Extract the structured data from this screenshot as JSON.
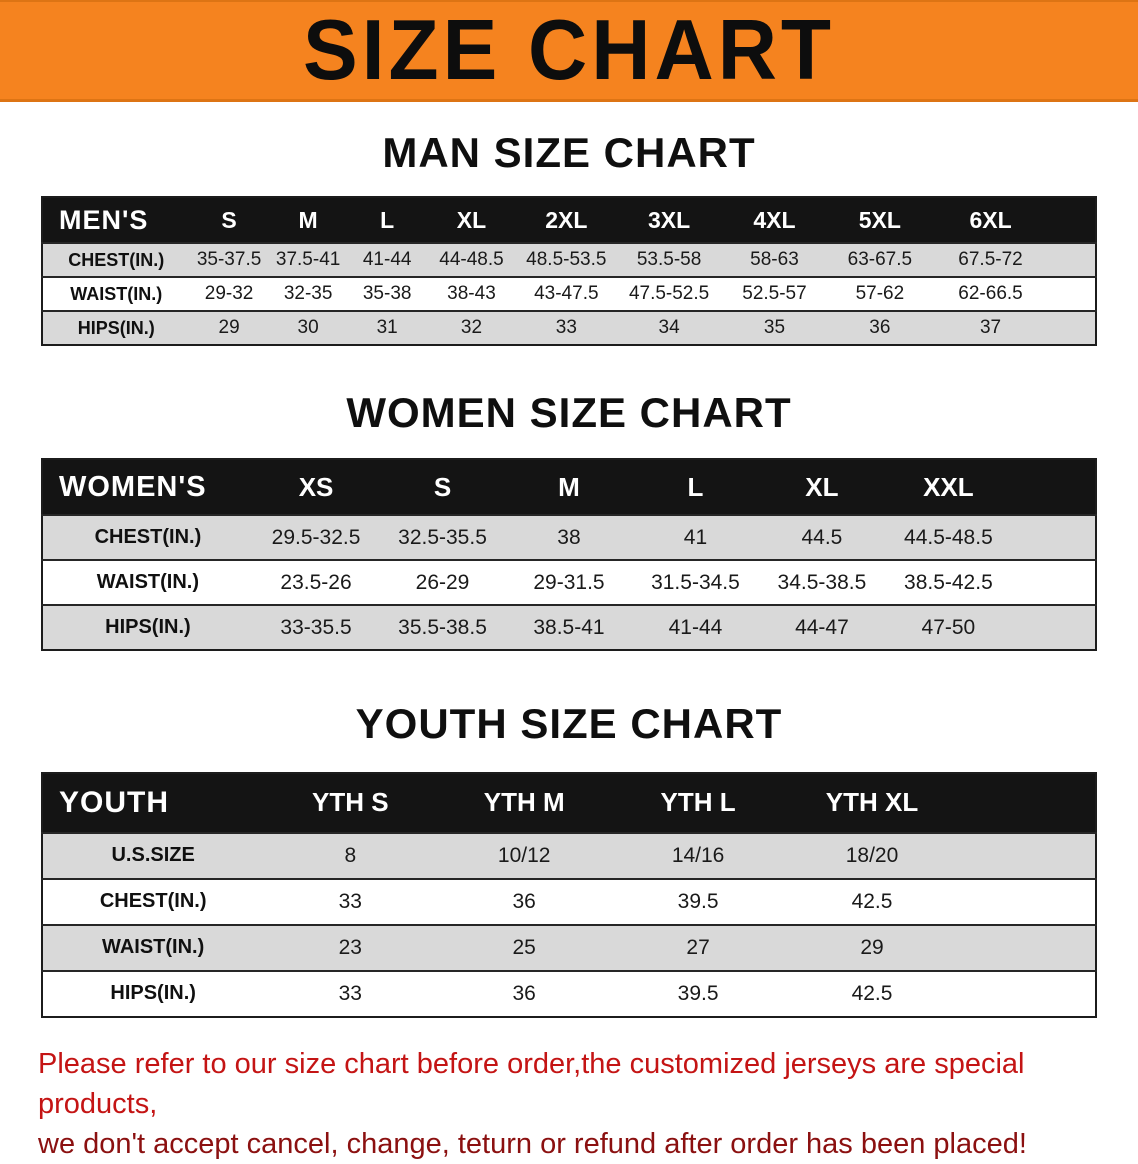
{
  "banner": {
    "title": "SIZE CHART"
  },
  "colors": {
    "banner_bg": "#F5831F",
    "header_bg": "#141414",
    "stripe": "#D9D9D9",
    "note_line1": "#C41414",
    "note_line2": "#8B1010"
  },
  "men": {
    "heading": "MAN SIZE CHART",
    "label": "MEN'S",
    "columns": [
      "S",
      "M",
      "L",
      "XL",
      "2XL",
      "3XL",
      "4XL",
      "5XL",
      "6XL"
    ],
    "rows": [
      {
        "label": "CHEST(IN.)",
        "values": [
          "35-37.5",
          "37.5-41",
          "41-44",
          "44-48.5",
          "48.5-53.5",
          "53.5-58",
          "58-63",
          "63-67.5",
          "67.5-72"
        ]
      },
      {
        "label": "WAIST(IN.)",
        "values": [
          "29-32",
          "32-35",
          "35-38",
          "38-43",
          "43-47.5",
          "47.5-52.5",
          "52.5-57",
          "57-62",
          "62-66.5"
        ]
      },
      {
        "label": "HIPS(IN.)",
        "values": [
          "29",
          "30",
          "31",
          "32",
          "33",
          "34",
          "35",
          "36",
          "37"
        ]
      }
    ]
  },
  "women": {
    "heading": "WOMEN SIZE CHART",
    "label": "WOMEN'S",
    "columns": [
      "XS",
      "S",
      "M",
      "L",
      "XL",
      "XXL"
    ],
    "rows": [
      {
        "label": "CHEST(IN.)",
        "values": [
          "29.5-32.5",
          "32.5-35.5",
          "38",
          "41",
          "44.5",
          "44.5-48.5"
        ]
      },
      {
        "label": "WAIST(IN.)",
        "values": [
          "23.5-26",
          "26-29",
          "29-31.5",
          "31.5-34.5",
          "34.5-38.5",
          "38.5-42.5"
        ]
      },
      {
        "label": "HIPS(IN.)",
        "values": [
          "33-35.5",
          "35.5-38.5",
          "38.5-41",
          "41-44",
          "44-47",
          "47-50"
        ]
      }
    ]
  },
  "youth": {
    "heading": "YOUTH SIZE CHART",
    "label": "YOUTH",
    "columns": [
      "YTH S",
      "YTH M",
      "YTH L",
      "YTH XL"
    ],
    "rows": [
      {
        "label": "U.S.SIZE",
        "values": [
          "8",
          "10/12",
          "14/16",
          "18/20"
        ]
      },
      {
        "label": "CHEST(IN.)",
        "values": [
          "33",
          "36",
          "39.5",
          "42.5"
        ]
      },
      {
        "label": "WAIST(IN.)",
        "values": [
          "23",
          "25",
          "27",
          "29"
        ]
      },
      {
        "label": "HIPS(IN.)",
        "values": [
          "33",
          "36",
          "39.5",
          "42.5"
        ]
      }
    ]
  },
  "note": {
    "line1": "Please refer to our size chart before order,the customized jerseys are special products,",
    "line2": "we don't accept cancel, change, teturn or refund after order has been placed!"
  }
}
